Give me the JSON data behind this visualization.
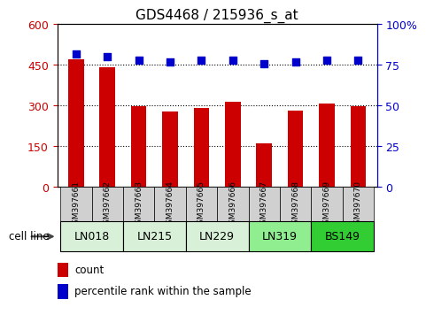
{
  "title": "GDS4468 / 215936_s_at",
  "samples": [
    "GSM397661",
    "GSM397662",
    "GSM397663",
    "GSM397664",
    "GSM397665",
    "GSM397666",
    "GSM397667",
    "GSM397668",
    "GSM397669",
    "GSM397670"
  ],
  "counts": [
    470,
    443,
    298,
    278,
    292,
    314,
    160,
    283,
    308,
    298
  ],
  "percentile_ranks": [
    82,
    80,
    78,
    77,
    78,
    78,
    76,
    77,
    78,
    78
  ],
  "cell_lines": [
    {
      "name": "LN018",
      "samples": [
        0,
        1
      ],
      "color": "#d8f0d8"
    },
    {
      "name": "LN215",
      "samples": [
        2,
        3
      ],
      "color": "#d8f0d8"
    },
    {
      "name": "LN229",
      "samples": [
        4,
        5
      ],
      "color": "#d8f0d8"
    },
    {
      "name": "LN319",
      "samples": [
        6,
        7
      ],
      "color": "#90ee90"
    },
    {
      "name": "BS149",
      "samples": [
        8,
        9
      ],
      "color": "#32cd32"
    }
  ],
  "bar_color": "#cc0000",
  "dot_color": "#0000cc",
  "left_ylim": [
    0,
    600
  ],
  "left_yticks": [
    0,
    150,
    300,
    450,
    600
  ],
  "right_ylim": [
    0,
    100
  ],
  "right_yticks": [
    0,
    25,
    50,
    75,
    100
  ],
  "tick_label_color_left": "#cc0000",
  "tick_label_color_right": "#0000cc",
  "cell_line_label": "cell line",
  "legend_count_label": "count",
  "legend_percentile_label": "percentile rank within the sample",
  "sample_bg_color": "#d0d0d0",
  "bar_width": 0.5
}
